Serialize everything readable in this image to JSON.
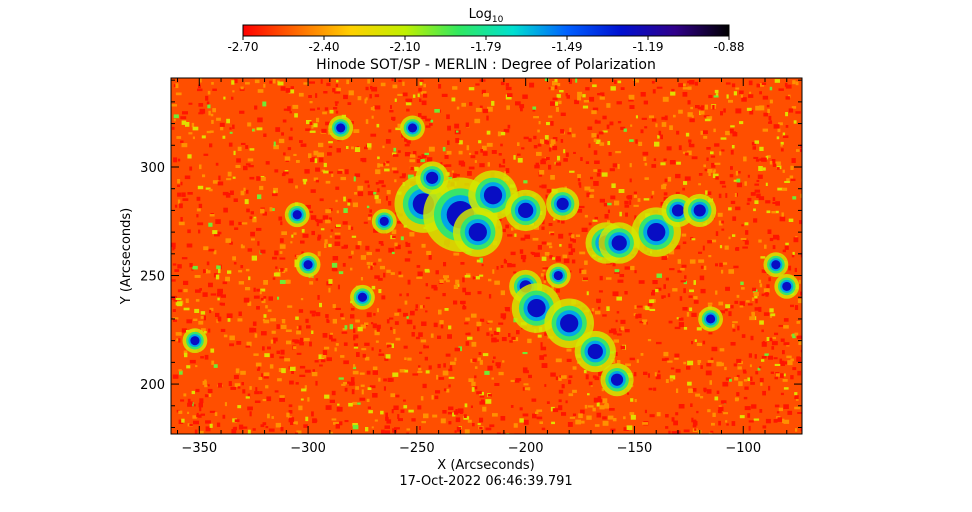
{
  "chart_data": {
    "type": "heatmap",
    "title": "Hinode SOT/SP - MERLIN : Degree of Polarization",
    "xlabel": "X (Arcseconds)",
    "ylabel": "Y (Arcseconds)",
    "timestamp": "17-Oct-2022 06:46:39.791",
    "colorbar": {
      "label": "Log",
      "label_subscript": "10",
      "ticks": [
        "-2.70",
        "-2.40",
        "-2.10",
        "-1.79",
        "-1.49",
        "-1.19",
        "-0.88"
      ],
      "range": [
        -2.7,
        -0.88
      ],
      "stops": [
        "#ff0000",
        "#ff6a00",
        "#ffd000",
        "#c0f000",
        "#30e860",
        "#00e0d0",
        "#0060ff",
        "#0010d0",
        "#30008a",
        "#000000"
      ]
    },
    "xlim": [
      -363,
      -73
    ],
    "ylim": [
      177,
      341
    ],
    "xticks": [
      -350,
      -300,
      -250,
      -200,
      -150,
      -100
    ],
    "yticks": [
      200,
      250,
      300
    ],
    "background_level": -2.55,
    "features": [
      {
        "kind": "network",
        "level": -1.25,
        "x": -247,
        "y": 283,
        "r": 7
      },
      {
        "kind": "network",
        "level": -1.25,
        "x": -230,
        "y": 278,
        "r": 9
      },
      {
        "kind": "network",
        "level": -1.25,
        "x": -215,
        "y": 287,
        "r": 6
      },
      {
        "kind": "network",
        "level": -1.25,
        "x": -222,
        "y": 270,
        "r": 6
      },
      {
        "kind": "network",
        "level": -1.25,
        "x": -200,
        "y": 280,
        "r": 5
      },
      {
        "kind": "network",
        "level": -1.25,
        "x": -183,
        "y": 283,
        "r": 4
      },
      {
        "kind": "network",
        "level": -1.25,
        "x": -163,
        "y": 265,
        "r": 5
      },
      {
        "kind": "network",
        "level": -1.25,
        "x": -140,
        "y": 270,
        "r": 6
      },
      {
        "kind": "network",
        "level": -1.25,
        "x": -130,
        "y": 280,
        "r": 4
      },
      {
        "kind": "network",
        "level": -1.25,
        "x": -200,
        "y": 245,
        "r": 4
      },
      {
        "kind": "network",
        "level": -1.25,
        "x": -195,
        "y": 235,
        "r": 6
      },
      {
        "kind": "network",
        "level": -1.25,
        "x": -180,
        "y": 228,
        "r": 6
      },
      {
        "kind": "network",
        "level": -1.25,
        "x": -168,
        "y": 215,
        "r": 5
      },
      {
        "kind": "network",
        "level": -1.25,
        "x": -158,
        "y": 202,
        "r": 4
      },
      {
        "kind": "network",
        "level": -1.25,
        "x": -243,
        "y": 295,
        "r": 4
      },
      {
        "kind": "network",
        "level": -1.25,
        "x": -305,
        "y": 278,
        "r": 3
      },
      {
        "kind": "network",
        "level": -1.25,
        "x": -300,
        "y": 255,
        "r": 3
      },
      {
        "kind": "network",
        "level": -1.25,
        "x": -352,
        "y": 220,
        "r": 3
      },
      {
        "kind": "network",
        "level": -1.25,
        "x": -265,
        "y": 275,
        "r": 3
      },
      {
        "kind": "network",
        "level": -1.25,
        "x": -285,
        "y": 318,
        "r": 3
      },
      {
        "kind": "network",
        "level": -1.25,
        "x": -252,
        "y": 318,
        "r": 3
      },
      {
        "kind": "network",
        "level": -1.25,
        "x": -157,
        "y": 265,
        "r": 5
      },
      {
        "kind": "network",
        "level": -1.25,
        "x": -120,
        "y": 280,
        "r": 4
      },
      {
        "kind": "network",
        "level": -1.25,
        "x": -85,
        "y": 255,
        "r": 3
      },
      {
        "kind": "network",
        "level": -1.25,
        "x": -80,
        "y": 245,
        "r": 3
      },
      {
        "kind": "network",
        "level": -1.25,
        "x": -185,
        "y": 250,
        "r": 3
      },
      {
        "kind": "network",
        "level": -1.25,
        "x": -275,
        "y": 240,
        "r": 3
      },
      {
        "kind": "network",
        "level": -1.25,
        "x": -115,
        "y": 230,
        "r": 3
      }
    ]
  }
}
